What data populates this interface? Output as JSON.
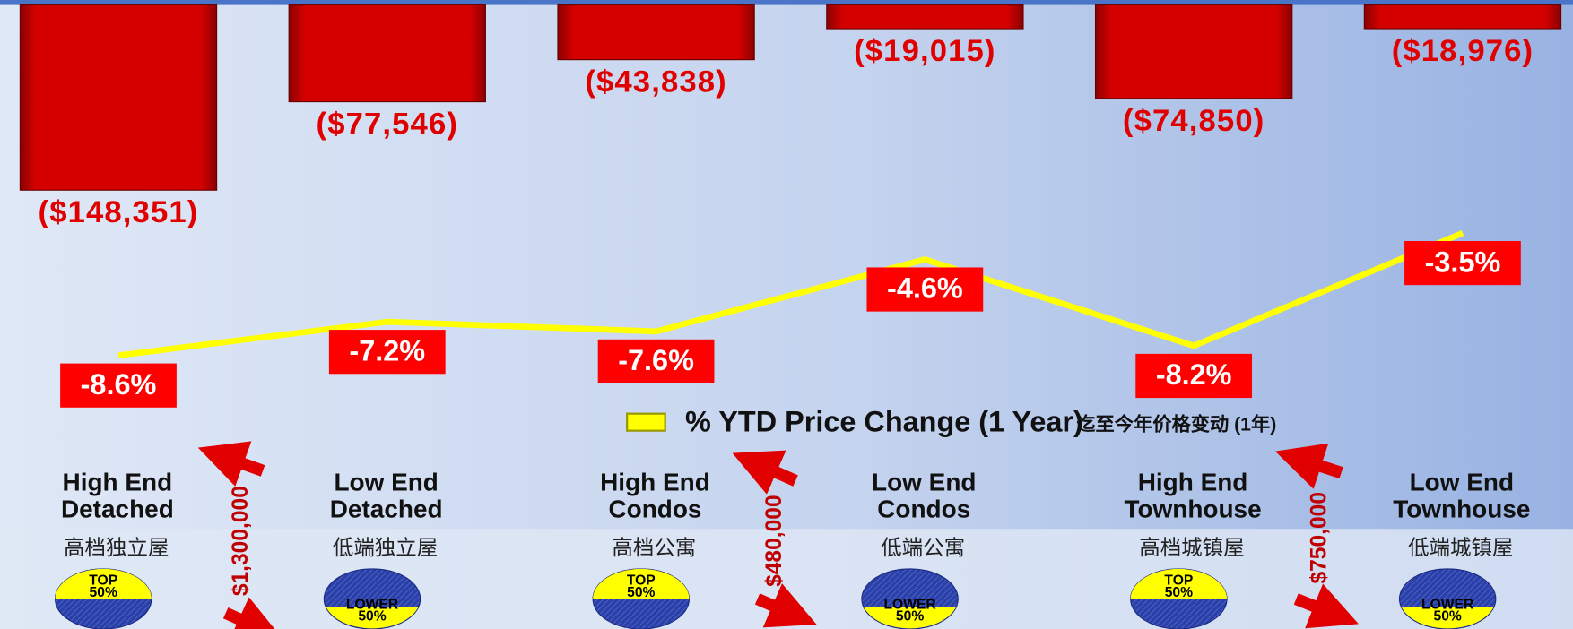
{
  "chart_data": {
    "type": "bar",
    "ylim": [
      -500000,
      0
    ],
    "y2lim": [
      -20,
      6
    ],
    "series": [
      {
        "type": "bar",
        "color": "#cc0000",
        "values": [
          -148351,
          -77546,
          -43838,
          -19015,
          -74850,
          -18976
        ],
        "value_labels": [
          "($148,351)",
          "($77,546)",
          "($43,838)",
          "($19,015)",
          "($74,850)",
          "($18,976)"
        ]
      },
      {
        "type": "line",
        "axis": "y2",
        "name": "% YTD Price Change (1 Year)",
        "color": "#ffff00",
        "values": [
          -8.6,
          -7.2,
          -7.6,
          -4.6,
          -8.2,
          -3.5
        ],
        "value_labels": [
          "-8.6%",
          "-7.2%",
          "-7.6%",
          "-4.6%",
          "-8.2%",
          "-3.5%"
        ]
      }
    ],
    "legend_note": "迄至今年价格变动 (1年)"
  },
  "category_panels": [
    {
      "title": [
        "High End",
        "Detached"
      ],
      "chinese": "高档独立屋",
      "badge": [
        "TOP",
        "50%"
      ]
    },
    {
      "title": [
        "Low End",
        "Detached"
      ],
      "chinese": "低端独立屋",
      "badge": [
        "LOWER",
        "50%"
      ]
    },
    {
      "title": [
        "High End",
        "Condos"
      ],
      "chinese": "高档公寓",
      "badge": [
        "TOP",
        "50%"
      ]
    },
    {
      "title": [
        "Low End",
        "Condos"
      ],
      "chinese": "低端公寓",
      "badge": [
        "LOWER",
        "50%"
      ]
    },
    {
      "title": [
        "High End",
        "Townhouse"
      ],
      "chinese": "高档城镇屋",
      "badge": [
        "TOP",
        "50%"
      ]
    },
    {
      "title": [
        "Low End",
        "Townhouse"
      ],
      "chinese": "低端城镇屋",
      "badge": [
        "LOWER",
        "50%"
      ]
    }
  ],
  "price_thresholds": [
    "$1,300,000",
    "$480,000",
    "$750,000"
  ]
}
